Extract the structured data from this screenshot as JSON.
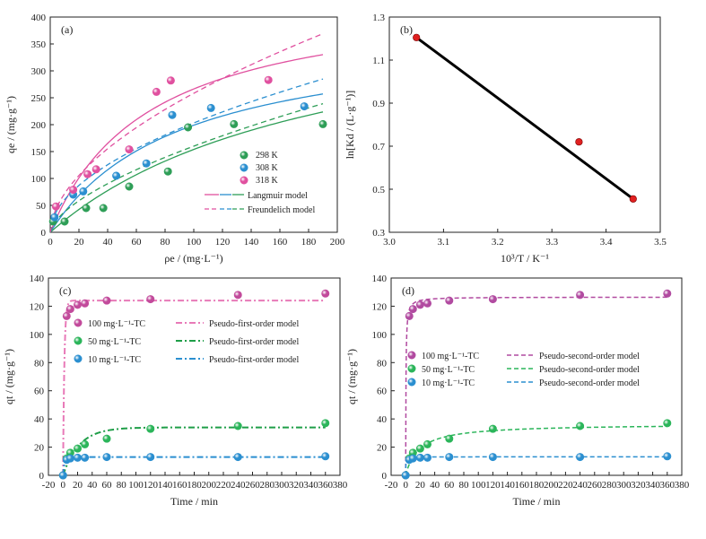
{
  "chart_data": [
    {
      "id": "a",
      "type": "scatter",
      "label": "(a)",
      "xlabel": "ρe / (mg·L⁻¹)",
      "ylabel": "qe / (mg·g⁻¹)",
      "xlim": [
        0,
        200
      ],
      "ylim": [
        0,
        400
      ],
      "xticks": [
        0,
        20,
        40,
        60,
        80,
        100,
        120,
        140,
        160,
        180,
        200
      ],
      "yticks": [
        0,
        50,
        100,
        150,
        200,
        250,
        300,
        350,
        400
      ],
      "legend_position": "lower-right",
      "series": [
        {
          "name": "298 K",
          "color": "#2e9e57",
          "x": [
            2,
            10,
            25,
            37,
            55,
            82,
            96,
            128,
            190
          ],
          "y": [
            20,
            20,
            45,
            45,
            85,
            113,
            195,
            201,
            201
          ]
        },
        {
          "name": "308 K",
          "color": "#2b8fd0",
          "x": [
            3,
            16,
            23,
            46,
            67,
            85,
            112,
            177
          ],
          "y": [
            28,
            70,
            76,
            105,
            128,
            218,
            231,
            234
          ]
        },
        {
          "name": "318 K",
          "color": "#e0509f",
          "x": [
            4,
            16,
            26,
            32,
            55,
            74,
            84,
            152
          ],
          "y": [
            48,
            79,
            108,
            117,
            154,
            261,
            282,
            283
          ]
        }
      ],
      "model_legend": [
        {
          "name": "Langmuir model",
          "style": "solid"
        },
        {
          "name": "Freundelich model",
          "style": "dashed"
        }
      ],
      "models": {
        "langmuir": [
          {
            "color": "#2e9e57",
            "qm": 450,
            "KL": 0.0052
          },
          {
            "color": "#2b8fd0",
            "qm": 380,
            "KL": 0.011
          },
          {
            "color": "#e0509f",
            "qm": 450,
            "KL": 0.0145
          }
        ],
        "freundlich": [
          {
            "color": "#2e9e57",
            "KF": 9.0,
            "n": 1.6
          },
          {
            "color": "#2b8fd0",
            "KF": 18.0,
            "n": 1.9
          },
          {
            "color": "#e0509f",
            "KF": 20.0,
            "n": 1.8
          }
        ]
      }
    },
    {
      "id": "b",
      "type": "line",
      "label": "(b)",
      "xlabel": "10³/T / K⁻¹",
      "ylabel": "ln[Kd / (L·g⁻¹)]",
      "xlim": [
        3.0,
        3.5
      ],
      "ylim": [
        0.3,
        1.3
      ],
      "xticks": [
        3.0,
        3.1,
        3.2,
        3.3,
        3.4,
        3.5
      ],
      "yticks": [
        0.3,
        0.5,
        0.7,
        0.9,
        1.1,
        1.3
      ],
      "x": [
        3.05,
        3.35,
        3.45
      ],
      "y": [
        1.205,
        0.72,
        0.455
      ],
      "point_color": "#e02020",
      "line_color": "#000000"
    },
    {
      "id": "c",
      "type": "scatter",
      "label": "(c)",
      "xlabel": "Time / min",
      "ylabel": "qt / (mg·g⁻¹)",
      "xlim": [
        -20,
        380
      ],
      "ylim": [
        0,
        140
      ],
      "xticks": [
        -20,
        0,
        20,
        40,
        60,
        80,
        100,
        120,
        140,
        160,
        180,
        200,
        220,
        240,
        260,
        280,
        300,
        320,
        340,
        360,
        380
      ],
      "yticks": [
        0,
        20,
        40,
        60,
        80,
        100,
        120,
        140
      ],
      "legend_position": "upper-left",
      "model": "pseudo-first-order",
      "line_style": "dashdot",
      "series": [
        {
          "name": "100 mg·L⁻¹-TC",
          "model_name": "Pseudo-first-order model",
          "color": "#c24a9b",
          "line_color": "#e87ab8",
          "x": [
            0,
            5,
            10,
            20,
            30,
            60,
            120,
            240,
            360
          ],
          "y": [
            0,
            113,
            118,
            121,
            122,
            124,
            125,
            128,
            129
          ],
          "qe": 124,
          "k": 0.55
        },
        {
          "name": "50 mg·L⁻¹-TC",
          "model_name": "Pseudo-first-order model",
          "color": "#2bb55a",
          "line_color": "#1f9e48",
          "x": [
            0,
            5,
            10,
            20,
            30,
            60,
            120,
            240,
            360
          ],
          "y": [
            0,
            12,
            16,
            19,
            22,
            26,
            33,
            35,
            37
          ],
          "qe": 34,
          "k": 0.045
        },
        {
          "name": "10 mg·L⁻¹-TC",
          "model_name": "Pseudo-first-order model",
          "color": "#2b8fd0",
          "line_color": "#2b8fd0",
          "x": [
            0,
            5,
            10,
            20,
            30,
            60,
            120,
            240,
            360
          ],
          "y": [
            0,
            11,
            12,
            12.5,
            12.5,
            13,
            13,
            13,
            13.5
          ],
          "qe": 13,
          "k": 0.5
        }
      ]
    },
    {
      "id": "d",
      "type": "scatter",
      "label": "(d)",
      "xlabel": "Time / min",
      "ylabel": "qt / (mg·g⁻¹)",
      "xlim": [
        -20,
        380
      ],
      "ylim": [
        0,
        140
      ],
      "xticks": [
        -20,
        0,
        20,
        40,
        60,
        80,
        100,
        120,
        140,
        160,
        180,
        200,
        220,
        240,
        260,
        280,
        300,
        320,
        340,
        360,
        380
      ],
      "yticks": [
        0,
        20,
        40,
        60,
        80,
        100,
        120,
        140
      ],
      "legend_position": "center-left",
      "model": "pseudo-second-order",
      "line_style": "dashed",
      "series": [
        {
          "name": "100 mg·L⁻¹-TC",
          "model_name": "Pseudo-second-order model",
          "color": "#b14aa0",
          "line_color": "#b14aa0",
          "x": [
            0,
            5,
            10,
            20,
            30,
            60,
            120,
            240,
            360
          ],
          "y": [
            0,
            113,
            118,
            121,
            122,
            124,
            125,
            128,
            129
          ],
          "qe": 126.5,
          "k": 0.02
        },
        {
          "name": "50 mg·L⁻¹-TC",
          "model_name": "Pseudo-second-order model",
          "color": "#2bb55a",
          "line_color": "#2bb55a",
          "x": [
            0,
            5,
            10,
            20,
            30,
            60,
            120,
            240,
            360
          ],
          "y": [
            0,
            12,
            16,
            19,
            22,
            26,
            33,
            35,
            37
          ],
          "qe": 36.5,
          "k": 0.0015
        },
        {
          "name": "10 mg·L⁻¹-TC",
          "model_name": "Pseudo-second-order model",
          "color": "#2b8fd0",
          "line_color": "#2b8fd0",
          "x": [
            0,
            5,
            10,
            20,
            30,
            60,
            120,
            240,
            360
          ],
          "y": [
            0,
            11,
            12,
            12.5,
            12.5,
            13,
            13,
            13,
            13.5
          ],
          "qe": 13.1,
          "k": 0.8
        }
      ]
    }
  ]
}
